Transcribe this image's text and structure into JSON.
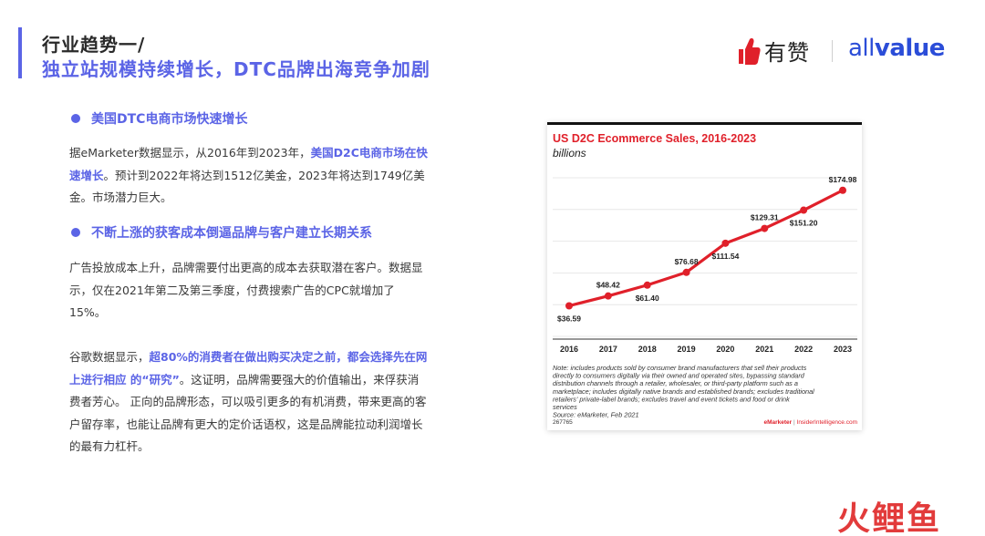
{
  "header": {
    "title_line1": "行业趋势一/",
    "title_line2": "独立站规模持续增长，DTC品牌出海竞争加剧"
  },
  "logos": {
    "youzan_text": "有赞",
    "allvalue_light": "all",
    "allvalue_bold": "value"
  },
  "section1": {
    "heading": "美国DTC电商市场快速增长",
    "p1_a": "据eMarketer数据显示，从2016年到2023年，",
    "p1_hl": "美国D2C电商市场在快速增长",
    "p1_b": "。预计到2022年将达到1512亿美金，2023年将达到1749亿美金。市场潜力巨大。"
  },
  "section2": {
    "heading": "不断上涨的获客成本倒逼品牌与客户建立长期关系",
    "p2": "广告投放成本上升，品牌需要付出更高的成本去获取潜在客户。数据显示，仅在2021年第二及第三季度，付费搜索广告的CPC就增加了15%。",
    "p3_a": "谷歌数据显示，",
    "p3_hl": "超80%的消费者在做出购买决定之前，都会选择先在网上进行相应 的“研究”",
    "p3_b": "。这证明，品牌需要强大的价值输出，来俘获消费者芳心。 正向的品牌形态，可以吸引更多的有机消费，带来更高的客户留存率，也能让品牌有更大的定价话语权，这是品牌能拉动利润增长的最有力杠杆。"
  },
  "chart_data": {
    "type": "line",
    "title": "US D2C Ecommerce Sales, 2016-2023",
    "subtitle": "billions",
    "categories": [
      "2016",
      "2017",
      "2018",
      "2019",
      "2020",
      "2021",
      "2022",
      "2023"
    ],
    "values": [
      36.59,
      48.42,
      61.4,
      76.68,
      111.54,
      129.31,
      151.2,
      174.98
    ],
    "data_labels": [
      "$36.59",
      "$48.42",
      "$61.40",
      "$76.68",
      "$111.54",
      "$129.31",
      "$151.20",
      "$174.98"
    ],
    "ylim": [
      0,
      190
    ],
    "grid": true,
    "color": "#e0202a",
    "note": "Note: includes products sold by consumer brand manufacturers that sell their products directly to consumers digitally via their owned and operated sites, bypassing standard distribution channels through a retailer, wholesaler, or third-party platform such as a marketplace; includes digitally native brands and established brands; excludes traditional retailers' private-label brands; excludes travel and event tickets and food or drink services",
    "source": "Source: eMarketer, Feb 2021",
    "chart_id": "267765",
    "footer_brand_a": "eMarketer",
    "footer_sep": " | ",
    "footer_brand_b": "InsiderIntelligence.com"
  },
  "watermark": "火鲤鱼"
}
